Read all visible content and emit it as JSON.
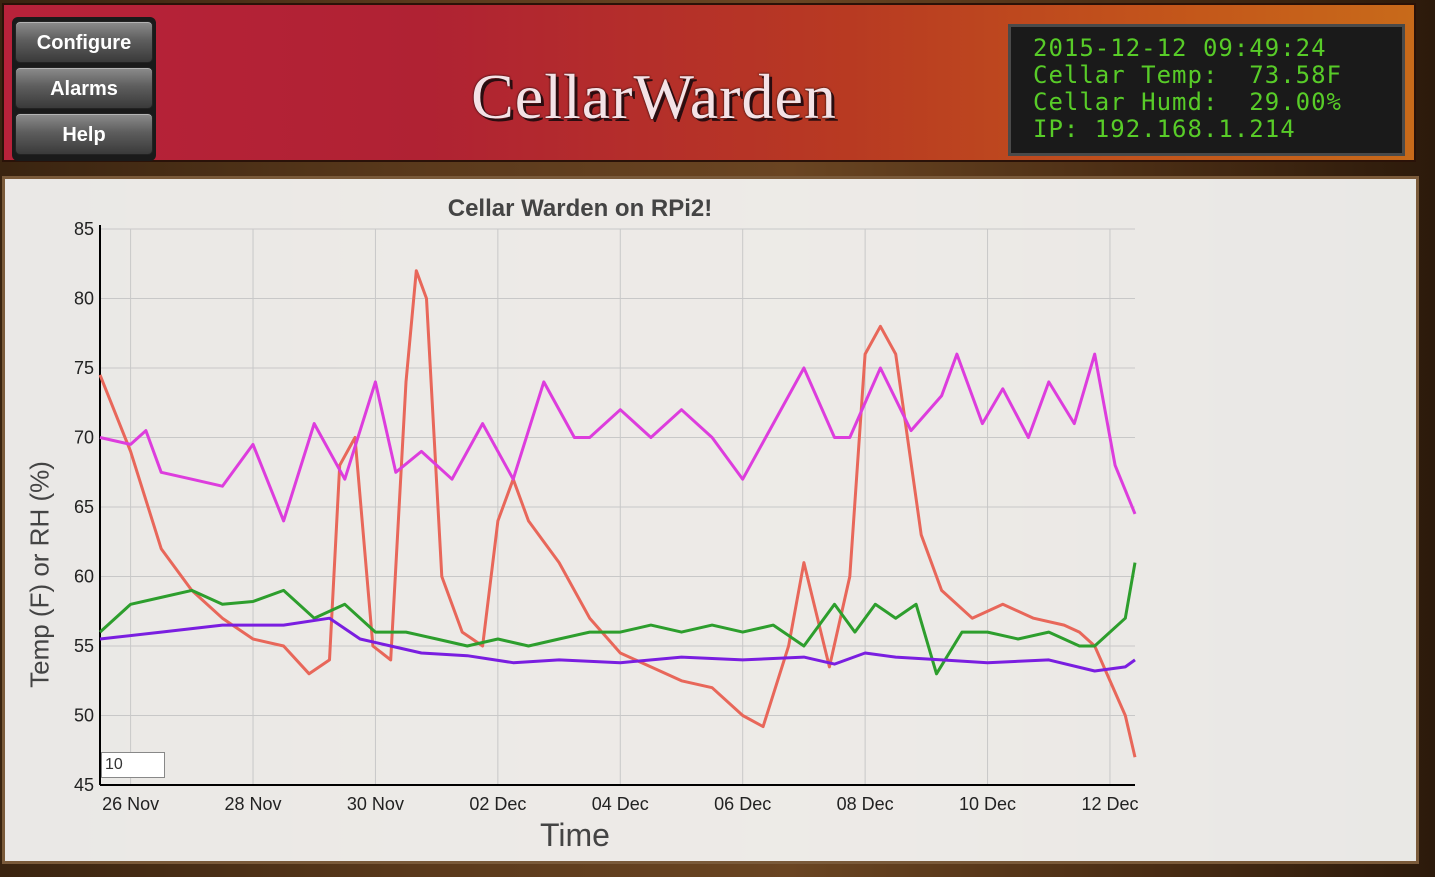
{
  "menu": {
    "configure_label": "Configure",
    "alarms_label": "Alarms",
    "help_label": "Help"
  },
  "logo": {
    "text": "CellarWarden"
  },
  "lcd": {
    "line1": "2015-12-12 09:49:24",
    "line2": "Cellar Temp:  73.58F",
    "line3": "Cellar Humd:  29.00%",
    "line4": "IP: 192.168.1.214"
  },
  "roll_period": {
    "value": "10"
  },
  "chart_data": {
    "type": "line",
    "title": "Cellar Warden on RPi2!",
    "xlabel": "Time",
    "ylabel": "Temp (F) or RH (%)",
    "ylim": [
      45,
      85
    ],
    "xlim": [
      "2015-11-25 12:00",
      "2015-12-12 09:49"
    ],
    "yticks": [
      45,
      50,
      55,
      60,
      65,
      70,
      75,
      80,
      85
    ],
    "xticks": [
      "26 Nov",
      "28 Nov",
      "30 Nov",
      "02 Dec",
      "04 Dec",
      "06 Dec",
      "08 Dec",
      "10 Dec",
      "12 Dec"
    ],
    "xtick_dates": [
      "2015-11-26",
      "2015-11-28",
      "2015-11-30",
      "2015-12-02",
      "2015-12-04",
      "2015-12-06",
      "2015-12-08",
      "2015-12-10",
      "2015-12-12"
    ],
    "grid": true,
    "colors": [
      "#e8675a",
      "#dd3ddd",
      "#2d9e2d",
      "#7a1ee0"
    ],
    "series": [
      {
        "x": [
          "2015-11-25 12:00",
          "2015-11-26 00:00",
          "2015-11-26 12:00",
          "2015-11-27 00:00",
          "2015-11-27 12:00",
          "2015-11-28 00:00",
          "2015-11-28 12:00",
          "2015-11-28 22:00",
          "2015-11-29 06:00",
          "2015-11-29 10:00",
          "2015-11-29 16:00",
          "2015-11-29 23:00",
          "2015-11-30 06:00",
          "2015-11-30 12:00",
          "2015-11-30 16:00",
          "2015-11-30 20:00",
          "2015-12-01 02:00",
          "2015-12-01 10:00",
          "2015-12-01 18:00",
          "2015-12-02 00:00",
          "2015-12-02 06:00",
          "2015-12-02 12:00",
          "2015-12-03 00:00",
          "2015-12-03 12:00",
          "2015-12-04 00:00",
          "2015-12-04 12:00",
          "2015-12-05 00:00",
          "2015-12-05 12:00",
          "2015-12-06 00:00",
          "2015-12-06 08:00",
          "2015-12-06 18:00",
          "2015-12-07 00:00",
          "2015-12-07 10:00",
          "2015-12-07 18:00",
          "2015-12-08 00:00",
          "2015-12-08 06:00",
          "2015-12-08 12:00",
          "2015-12-08 22:00",
          "2015-12-09 06:00",
          "2015-12-09 18:00",
          "2015-12-10 06:00",
          "2015-12-10 18:00",
          "2015-12-11 06:00",
          "2015-12-11 12:00",
          "2015-12-11 18:00",
          "2015-12-12 06:00",
          "2015-12-12 09:49"
        ],
        "y": [
          74.5,
          69,
          62,
          59,
          57,
          55.5,
          55,
          53,
          54,
          68,
          70,
          55,
          54,
          74,
          82,
          80,
          60,
          56,
          55,
          64,
          67,
          64,
          61,
          57,
          54.5,
          53.5,
          52.5,
          52,
          50,
          49.2,
          55,
          61,
          53.5,
          60,
          76,
          78,
          76,
          63,
          59,
          57,
          58,
          57,
          56.5,
          56,
          55,
          50,
          47
        ]
      },
      {
        "x": [
          "2015-11-25 12:00",
          "2015-11-26 00:00",
          "2015-11-26 06:00",
          "2015-11-26 12:00",
          "2015-11-27 00:00",
          "2015-11-27 12:00",
          "2015-11-28 00:00",
          "2015-11-28 12:00",
          "2015-11-29 00:00",
          "2015-11-29 12:00",
          "2015-11-30 00:00",
          "2015-11-30 08:00",
          "2015-11-30 18:00",
          "2015-12-01 06:00",
          "2015-12-01 18:00",
          "2015-12-02 06:00",
          "2015-12-02 18:00",
          "2015-12-03 06:00",
          "2015-12-03 12:00",
          "2015-12-04 00:00",
          "2015-12-04 12:00",
          "2015-12-05 00:00",
          "2015-12-05 12:00",
          "2015-12-06 00:00",
          "2015-12-06 12:00",
          "2015-12-07 00:00",
          "2015-12-07 12:00",
          "2015-12-07 18:00",
          "2015-12-08 06:00",
          "2015-12-08 18:00",
          "2015-12-09 06:00",
          "2015-12-09 12:00",
          "2015-12-09 22:00",
          "2015-12-10 06:00",
          "2015-12-10 16:00",
          "2015-12-11 00:00",
          "2015-12-11 10:00",
          "2015-12-11 18:00",
          "2015-12-12 02:00",
          "2015-12-12 09:49"
        ],
        "y": [
          70,
          69.5,
          70.5,
          67.5,
          67,
          66.5,
          69.5,
          64,
          71,
          67,
          74,
          67.5,
          69,
          67,
          71,
          67,
          74,
          70,
          70,
          72,
          70,
          72,
          70,
          67,
          71,
          75,
          70,
          70,
          75,
          70.5,
          73,
          76,
          71,
          73.5,
          70,
          74,
          71,
          76,
          68,
          64.5
        ]
      },
      {
        "x": [
          "2015-11-25 12:00",
          "2015-11-26 00:00",
          "2015-11-26 12:00",
          "2015-11-27 00:00",
          "2015-11-27 12:00",
          "2015-11-28 00:00",
          "2015-11-28 12:00",
          "2015-11-29 00:00",
          "2015-11-29 12:00",
          "2015-11-30 00:00",
          "2015-11-30 12:00",
          "2015-12-01 00:00",
          "2015-12-01 12:00",
          "2015-12-02 00:00",
          "2015-12-02 12:00",
          "2015-12-03 00:00",
          "2015-12-03 12:00",
          "2015-12-04 00:00",
          "2015-12-04 12:00",
          "2015-12-05 00:00",
          "2015-12-05 12:00",
          "2015-12-06 00:00",
          "2015-12-06 12:00",
          "2015-12-07 00:00",
          "2015-12-07 12:00",
          "2015-12-07 20:00",
          "2015-12-08 04:00",
          "2015-12-08 12:00",
          "2015-12-08 20:00",
          "2015-12-09 04:00",
          "2015-12-09 14:00",
          "2015-12-10 00:00",
          "2015-12-10 12:00",
          "2015-12-11 00:00",
          "2015-12-11 12:00",
          "2015-12-11 18:00",
          "2015-12-12 06:00",
          "2015-12-12 09:49"
        ],
        "y": [
          56,
          58,
          58.5,
          59,
          58,
          58.2,
          59,
          57,
          58,
          56,
          56,
          55.5,
          55,
          55.5,
          55,
          55.5,
          56,
          56,
          56.5,
          56,
          56.5,
          56,
          56.5,
          55,
          58,
          56,
          58,
          57,
          58,
          53,
          56,
          56,
          55.5,
          56,
          55,
          55,
          57,
          61
        ]
      },
      {
        "x": [
          "2015-11-25 12:00",
          "2015-11-26 12:00",
          "2015-11-27 12:00",
          "2015-11-28 12:00",
          "2015-11-29 06:00",
          "2015-11-29 18:00",
          "2015-11-30 06:00",
          "2015-11-30 18:00",
          "2015-12-01 12:00",
          "2015-12-02 06:00",
          "2015-12-03 00:00",
          "2015-12-04 00:00",
          "2015-12-05 00:00",
          "2015-12-06 00:00",
          "2015-12-07 00:00",
          "2015-12-07 12:00",
          "2015-12-08 00:00",
          "2015-12-08 12:00",
          "2015-12-09 06:00",
          "2015-12-10 00:00",
          "2015-12-11 00:00",
          "2015-12-11 18:00",
          "2015-12-12 06:00",
          "2015-12-12 09:49"
        ],
        "y": [
          55.5,
          56,
          56.5,
          56.5,
          57,
          55.5,
          55,
          54.5,
          54.3,
          53.8,
          54,
          53.8,
          54.2,
          54,
          54.2,
          53.7,
          54.5,
          54.2,
          54,
          53.8,
          54,
          53.2,
          53.5,
          54
        ]
      }
    ]
  }
}
